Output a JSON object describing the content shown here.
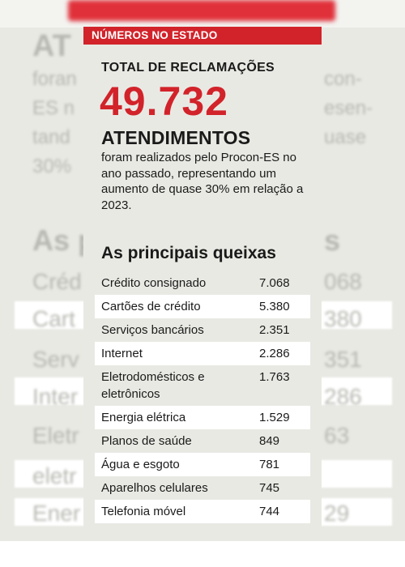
{
  "infographic": {
    "tag": "NÚMEROS NO ESTADO",
    "kicker": "TOTAL DE RECLAMAÇÕES",
    "total": "49.732",
    "subhead": "ATENDIMENTOS",
    "description": "foram realizados pelo Procon-ES no ano passado, representando um aumento de quase 30% em relação a 2023.",
    "section_title": "As principais queixas",
    "complaints": [
      {
        "name": "Crédito consignado",
        "value": "7.068"
      },
      {
        "name": "Cartões de crédito",
        "value": "5.380"
      },
      {
        "name": "Serviços bancários",
        "value": "2.351"
      },
      {
        "name": "Internet",
        "value": "2.286"
      },
      {
        "name": "Eletrodomésticos e eletrônicos",
        "value": "1.763"
      },
      {
        "name": "Energia elétrica",
        "value": "1.529"
      },
      {
        "name": "Planos de saúde",
        "value": "849"
      },
      {
        "name": "Água e esgoto",
        "value": "781"
      },
      {
        "name": "Aparelhos celulares",
        "value": "745"
      },
      {
        "name": "Telefonia móvel",
        "value": "744"
      }
    ]
  },
  "colors": {
    "accent": "#d2232a",
    "panel": "#e9e9e4",
    "text": "#1a1a1a"
  }
}
